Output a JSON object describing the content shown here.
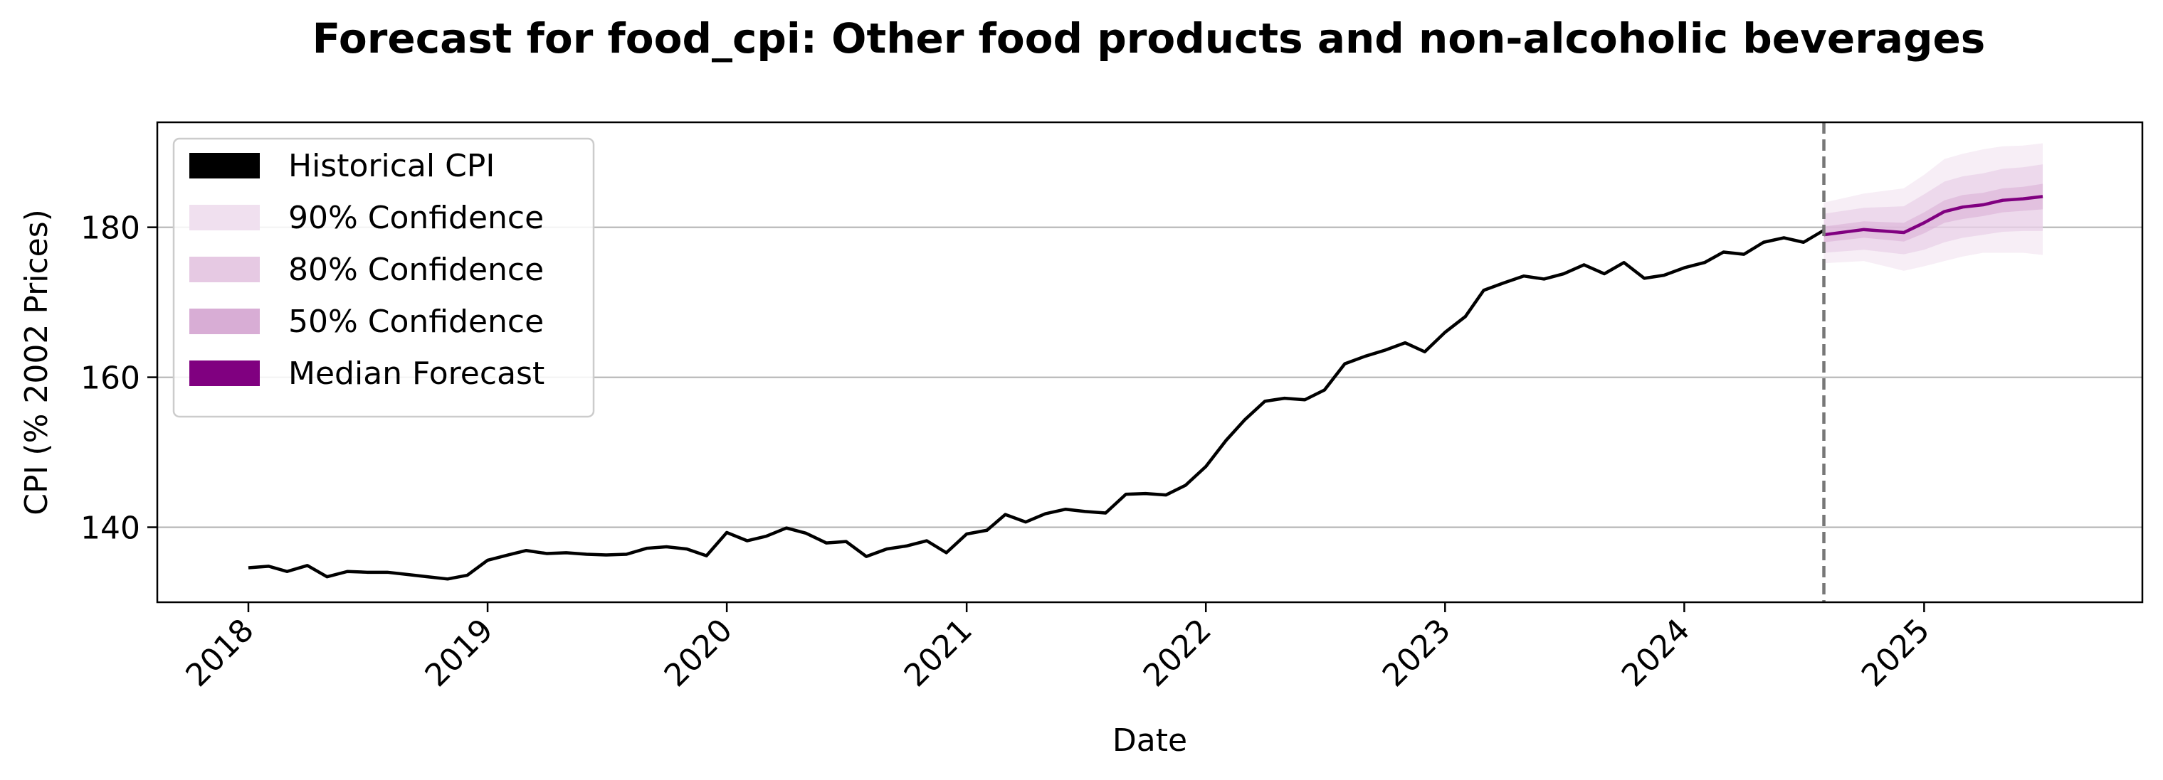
{
  "chart_data": {
    "type": "line",
    "title": "Forecast for food_cpi: Other food products and non-alcoholic beverages",
    "xlabel": "Date",
    "ylabel": "CPI (% 2002 Prices)",
    "x_type": "date",
    "xlim": [
      "2017-08-15",
      "2025-11-30"
    ],
    "ylim": [
      130,
      194
    ],
    "x_ticks": [
      "2018-01-01",
      "2019-01-01",
      "2020-01-01",
      "2021-01-01",
      "2022-01-01",
      "2023-01-01",
      "2024-01-01",
      "2025-01-01"
    ],
    "x_tick_labels": [
      "2018",
      "2019",
      "2020",
      "2021",
      "2022",
      "2023",
      "2024",
      "2025"
    ],
    "y_ticks": [
      140,
      160,
      180
    ],
    "y_tick_labels": [
      "140",
      "160",
      "180"
    ],
    "grid": "y",
    "legend_position": "top-left",
    "forecast_start": "2024-08-01",
    "colors": {
      "historical": "#000000",
      "ci90": "#f0e0ef",
      "ci80": "#e6c9e3",
      "ci50": "#d8add5",
      "median": "#800080",
      "forecast_line": "#777777"
    },
    "legend": [
      {
        "key": "historical",
        "label": "Historical CPI"
      },
      {
        "key": "ci90",
        "label": "90% Confidence"
      },
      {
        "key": "ci80",
        "label": "80% Confidence"
      },
      {
        "key": "ci50",
        "label": "50% Confidence"
      },
      {
        "key": "median",
        "label": "Median Forecast"
      }
    ],
    "historical": {
      "start": "2018-01",
      "values": [
        134.6,
        134.8,
        134.1,
        134.9,
        133.4,
        134.1,
        134.0,
        134.0,
        133.7,
        133.4,
        133.1,
        133.6,
        135.6,
        136.3,
        136.9,
        136.5,
        136.6,
        136.4,
        136.3,
        136.4,
        137.2,
        137.4,
        137.1,
        136.2,
        139.3,
        138.2,
        138.8,
        139.9,
        139.2,
        137.9,
        138.1,
        136.1,
        137.1,
        137.5,
        138.2,
        136.6,
        139.1,
        139.6,
        141.7,
        140.7,
        141.8,
        142.4,
        142.1,
        141.9,
        144.4,
        144.5,
        144.3,
        145.6,
        148.1,
        151.6,
        154.3,
        156.8,
        157.2,
        157.0,
        158.3,
        161.8,
        162.8,
        163.6,
        164.6,
        163.4,
        166.0,
        168.1,
        171.6,
        172.6,
        173.5,
        173.1,
        173.8,
        175.0,
        173.8,
        175.3,
        173.2,
        173.6,
        174.6,
        175.3,
        176.7,
        176.4,
        178.0,
        178.6,
        178.0,
        179.6
      ]
    },
    "forecast": {
      "dates": [
        "2024-08-01",
        "2024-10-01",
        "2024-12-01",
        "2025-01-01",
        "2025-02-01",
        "2025-03-01",
        "2025-04-01",
        "2025-05-01",
        "2025-06-01",
        "2025-07-01"
      ],
      "median": [
        179.0,
        179.7,
        179.3,
        180.6,
        182.1,
        182.7,
        183.0,
        183.6,
        183.8,
        184.1
      ],
      "lower90": [
        175.2,
        175.5,
        174.2,
        174.8,
        175.5,
        176.1,
        176.6,
        176.6,
        176.6,
        176.3
      ],
      "upper90": [
        183.3,
        184.5,
        185.2,
        187.0,
        189.1,
        189.8,
        190.4,
        190.8,
        190.9,
        191.2
      ],
      "lower80": [
        176.6,
        177.0,
        176.4,
        177.0,
        178.0,
        178.6,
        179.0,
        179.4,
        179.5,
        179.5
      ],
      "upper80": [
        181.8,
        182.6,
        182.8,
        184.4,
        186.1,
        186.8,
        187.2,
        187.8,
        188.0,
        188.4
      ],
      "lower50": [
        178.0,
        178.6,
        178.1,
        179.2,
        180.6,
        181.1,
        181.5,
        182.0,
        182.2,
        182.4
      ],
      "upper50": [
        180.1,
        180.8,
        180.6,
        182.0,
        183.6,
        184.3,
        184.6,
        185.2,
        185.4,
        185.8
      ]
    }
  }
}
